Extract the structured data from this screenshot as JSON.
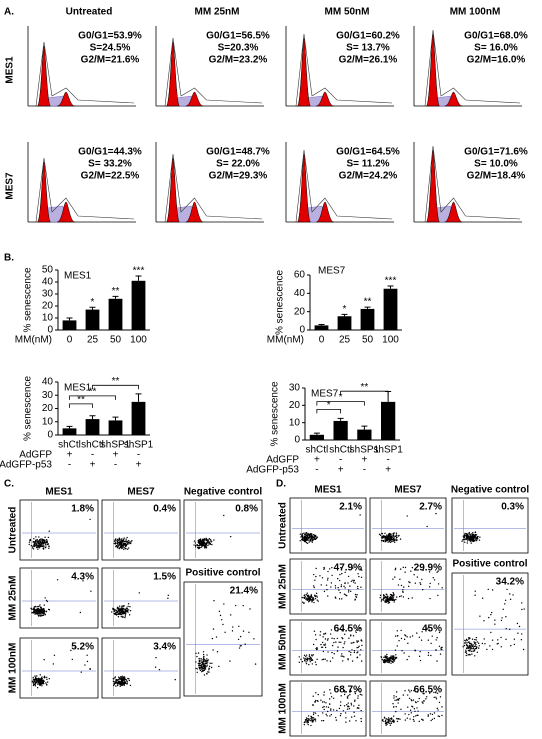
{
  "panel_a": {
    "label": "A.",
    "columns": [
      "Untreated",
      "MM 25nM",
      "MM 50nM",
      "MM 100nM"
    ],
    "rows": [
      {
        "name": "MES1",
        "stats": [
          [
            "G0/G1=53.9%",
            "S=24.5%",
            "G2/M=21.6%"
          ],
          [
            "G0/G1=56.5%",
            "S=20.3%",
            "G2/M=23.2%"
          ],
          [
            "G0/G1=60.2%",
            "S= 13.7%",
            "G2/M=26.1%"
          ],
          [
            "G0/G1=68.0%",
            "S= 16.0%",
            "G2/M=16.0%"
          ]
        ]
      },
      {
        "name": "MES7",
        "stats": [
          [
            "G0/G1=44.3%",
            "S= 33.2%",
            "G2/M=22.5%"
          ],
          [
            "G0/G1=48.7%",
            "S= 22.0%",
            "G2/M=29.3%"
          ],
          [
            "G0/G1=64.5%",
            "S= 11.2%",
            "G2/M=24.2%"
          ],
          [
            "G0/G1=71.6%",
            "S= 10.0%",
            "G2/M=18.4%"
          ]
        ]
      }
    ]
  },
  "panel_b": {
    "label": "B.",
    "charts": [
      {
        "type": "bar",
        "title": "MES1",
        "y_label": "% senescence",
        "x_label": "MM(nM)",
        "categories": [
          "0",
          "25",
          "50",
          "100"
        ],
        "values": [
          8,
          17,
          26,
          41
        ],
        "errors": [
          2,
          2,
          2,
          4
        ],
        "significance": [
          null,
          "*",
          "**",
          "***"
        ],
        "ylim": [
          0,
          50
        ],
        "yticks": [
          0,
          10,
          20,
          30,
          40,
          50
        ]
      },
      {
        "type": "bar",
        "title": "MES7",
        "y_label": "% senescence",
        "x_label": "MM(nM)",
        "categories": [
          "0",
          "25",
          "50",
          "100"
        ],
        "values": [
          5,
          15,
          23,
          45
        ],
        "errors": [
          1,
          2,
          2,
          3
        ],
        "significance": [
          null,
          "*",
          "**",
          "***"
        ],
        "ylim": [
          0,
          60
        ],
        "yticks": [
          0,
          20,
          40,
          60
        ]
      },
      {
        "type": "bar",
        "title": "MES1",
        "y_label": "% senescence",
        "categories": [
          "shCtl",
          "shCtl",
          "shSP1",
          "shSP1"
        ],
        "values": [
          5,
          12,
          11,
          25
        ],
        "errors": [
          1.5,
          2.5,
          2.5,
          6
        ],
        "brackets": [
          "**",
          "**",
          "**"
        ],
        "treatments": [
          {
            "name": "AdGFP",
            "signs": [
              "+",
              "-",
              "+",
              "-"
            ]
          },
          {
            "name": "AdGFP-p53",
            "signs": [
              "-",
              "+",
              "-",
              "+"
            ]
          }
        ],
        "ylim": [
          0,
          40
        ],
        "yticks": [
          0,
          10,
          20,
          30,
          40
        ]
      },
      {
        "type": "bar",
        "title": "MES7",
        "y_label": "% senescence",
        "categories": [
          "shCtl",
          "shCtl",
          "shSP1",
          "shSP1"
        ],
        "values": [
          3,
          11,
          6,
          22
        ],
        "errors": [
          1,
          1.5,
          2,
          6
        ],
        "brackets": [
          "*",
          "*",
          "**"
        ],
        "treatments": [
          {
            "name": "AdGFP",
            "signs": [
              "+",
              "-",
              "+",
              "-"
            ]
          },
          {
            "name": "AdGFP-p53",
            "signs": [
              "-",
              "+",
              "-",
              "+"
            ]
          }
        ],
        "ylim": [
          0,
          30
        ],
        "yticks": [
          0,
          10,
          20,
          30
        ]
      }
    ]
  },
  "panel_c": {
    "label": "C.",
    "columns": [
      "MES1",
      "MES7"
    ],
    "rows": [
      {
        "name": "Untreated",
        "values": [
          "1.8%",
          "0.4%"
        ]
      },
      {
        "name": "MM 25nM",
        "values": [
          "4.3%",
          "1.5%"
        ]
      },
      {
        "name": "MM 100nM",
        "values": [
          "5.2%",
          "3.4%"
        ]
      }
    ],
    "controls": [
      {
        "name": "Negative control",
        "value": "0.8%"
      },
      {
        "name": "Positive control",
        "value": "21.4%"
      }
    ]
  },
  "panel_d": {
    "label": "D.",
    "columns": [
      "MES1",
      "MES7"
    ],
    "rows": [
      {
        "name": "Untreated",
        "values": [
          "2.1%",
          "2.7%"
        ]
      },
      {
        "name": "MM 25nM",
        "values": [
          "47.9%",
          "29.9%"
        ]
      },
      {
        "name": "MM 50nM",
        "values": [
          "64.5%",
          "45%"
        ]
      },
      {
        "name": "MM 100nM",
        "values": [
          "68.7%",
          "66.5%"
        ]
      }
    ],
    "controls": [
      {
        "name": "Negative control",
        "value": "0.3%"
      },
      {
        "name": "Positive control",
        "value": "34.2%"
      }
    ]
  }
}
